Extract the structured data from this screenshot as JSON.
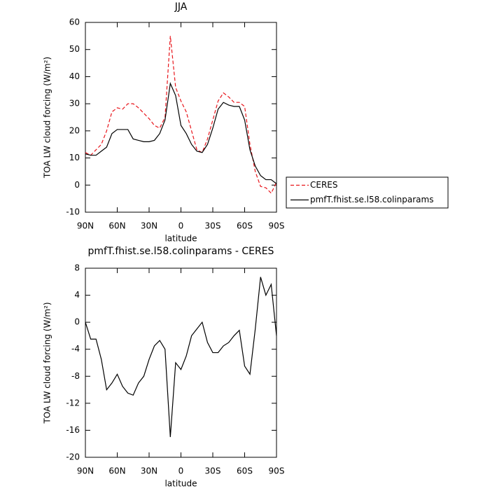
{
  "chart_data": [
    {
      "type": "line",
      "title": "JJA",
      "xlabel": "latitude",
      "ylabel": "TOA LW cloud forcing (W/m²)",
      "x": [
        90,
        85,
        80,
        75,
        70,
        65,
        60,
        55,
        50,
        45,
        40,
        35,
        30,
        25,
        20,
        15,
        10,
        5,
        0,
        -5,
        -10,
        -15,
        -20,
        -25,
        -30,
        -35,
        -40,
        -45,
        -50,
        -55,
        -60,
        -65,
        -70,
        -75,
        -80,
        -85,
        -90
      ],
      "xlim": [
        90,
        -90
      ],
      "xticks": [
        {
          "value": 90,
          "label": "90N"
        },
        {
          "value": 60,
          "label": "60N"
        },
        {
          "value": 30,
          "label": "30N"
        },
        0,
        {
          "value": -30,
          "label": "30S"
        },
        {
          "value": -60,
          "label": "60S"
        },
        {
          "value": -90,
          "label": "90S"
        }
      ],
      "ylim": [
        -10,
        60
      ],
      "yticks": [
        -10,
        0,
        10,
        20,
        30,
        40,
        50,
        60
      ],
      "legend": "outside-right",
      "series": [
        {
          "name": "CERES",
          "color": "#e8151b",
          "dash": true,
          "values": [
            12,
            11,
            13,
            15,
            20,
            27,
            28.5,
            28,
            30,
            30,
            28.5,
            26.5,
            24.5,
            22,
            21,
            25,
            55,
            36,
            31,
            27,
            20,
            13,
            12,
            17,
            24,
            31,
            34,
            32.5,
            30.5,
            30.5,
            29,
            15,
            5,
            -0.5,
            -1,
            -3,
            1
          ]
        },
        {
          "name": "pmfT.fhist.se.l58.colinparams",
          "color": "#000000",
          "dash": false,
          "values": [
            11.5,
            11,
            11,
            12.5,
            14,
            19,
            20.5,
            20.5,
            20.5,
            17,
            16.5,
            16,
            16,
            16.5,
            19,
            24,
            37.5,
            33,
            22,
            19,
            15,
            12.5,
            12,
            15,
            21,
            28,
            30.5,
            29.5,
            29,
            29,
            24,
            13,
            7,
            3.5,
            2,
            2,
            0.5
          ]
        }
      ]
    },
    {
      "type": "line",
      "title": "pmfT.fhist.se.l58.colinparams - CERES",
      "xlabel": "latitude",
      "ylabel": "TOA LW cloud forcing (W/m²)",
      "x": [
        90,
        85,
        80,
        75,
        70,
        65,
        60,
        55,
        50,
        45,
        40,
        35,
        30,
        25,
        20,
        15,
        10,
        5,
        0,
        -5,
        -10,
        -15,
        -20,
        -25,
        -30,
        -35,
        -40,
        -45,
        -50,
        -55,
        -60,
        -65,
        -70,
        -75,
        -80,
        -85,
        -90
      ],
      "xlim": [
        90,
        -90
      ],
      "xticks": [
        {
          "value": 90,
          "label": "90N"
        },
        {
          "value": 60,
          "label": "60N"
        },
        {
          "value": 30,
          "label": "30N"
        },
        0,
        {
          "value": -30,
          "label": "30S"
        },
        {
          "value": -60,
          "label": "60S"
        },
        {
          "value": -90,
          "label": "90S"
        }
      ],
      "ylim": [
        -20,
        8
      ],
      "yticks": [
        -20,
        -16,
        -12,
        -8,
        -4,
        0,
        4,
        8
      ],
      "series": [
        {
          "color": "#000000",
          "dash": false,
          "values": [
            0,
            -2.5,
            -2.5,
            -5.5,
            -10,
            -9,
            -7.7,
            -9.5,
            -10.5,
            -10.8,
            -9,
            -8,
            -5.5,
            -3.5,
            -2.7,
            -4,
            -17,
            -6,
            -7,
            -5,
            -2,
            -1,
            0,
            -3,
            -4.5,
            -4.5,
            -3.5,
            -3,
            -2,
            -1.2,
            -6.5,
            -7.7,
            -1,
            6.7,
            4,
            5.6,
            -2
          ]
        }
      ]
    }
  ]
}
